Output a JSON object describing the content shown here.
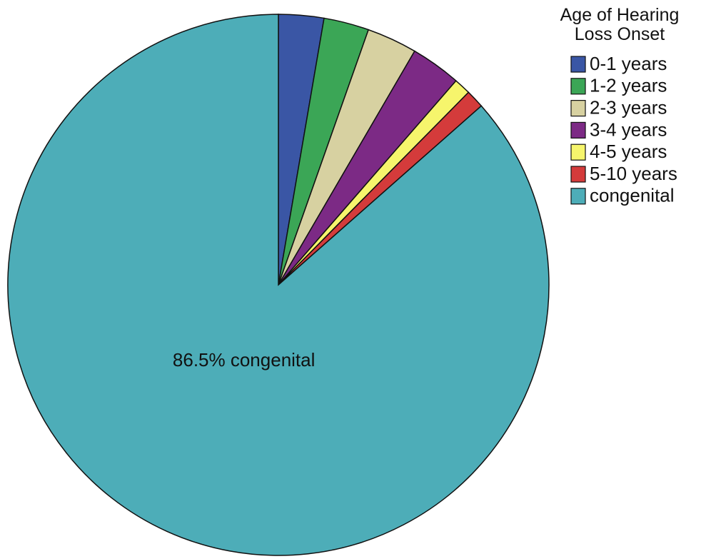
{
  "chart_data": {
    "type": "pie",
    "legend_title": "Age of Hearing Loss Onset",
    "legend_position": "upper right",
    "categories": [
      "0-1 years",
      "1-2 years",
      "2-3 years",
      "3-4 years",
      "4-5 years",
      "5-10 years",
      "congenital"
    ],
    "values": [
      2.7,
      2.7,
      3.0,
      3.0,
      1.0,
      1.1,
      86.5
    ],
    "value_labels": [
      null,
      null,
      null,
      null,
      null,
      null,
      "86.5% congenital"
    ],
    "colors": [
      "#3a56a5",
      "#3ba656",
      "#d7d1a1",
      "#7c2a85",
      "#f6f56c",
      "#d43b3b",
      "#4dadb8"
    ]
  }
}
